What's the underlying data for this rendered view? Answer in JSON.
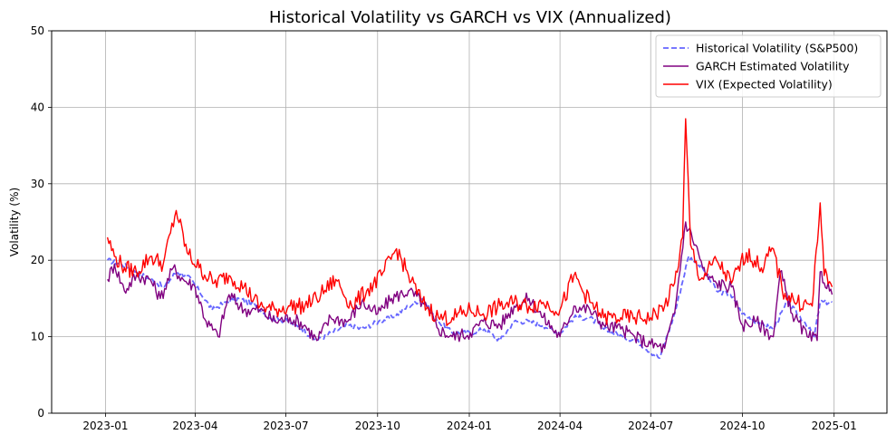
{
  "chart_data": {
    "type": "line",
    "title": "Historical Volatility vs GARCH vs VIX (Annualized)",
    "xlabel": "",
    "ylabel": "Volatility (%)",
    "ylim": [
      0,
      50
    ],
    "xlim": [
      "2022-11-08",
      "2025-02-23"
    ],
    "grid": true,
    "legend_position": "top-right",
    "x_ticks": [
      "2023-01",
      "2023-04",
      "2023-07",
      "2023-10",
      "2024-01",
      "2024-04",
      "2024-07",
      "2024-10",
      "2025-01"
    ],
    "y_ticks": [
      0,
      10,
      20,
      30,
      40,
      50
    ],
    "series": [
      {
        "name": "Historical Volatility (S&P500)",
        "color": "#6666ff",
        "style": "dashed",
        "points": [
          [
            "2023-01-03",
            20.0
          ],
          [
            "2023-01-17",
            19.5
          ],
          [
            "2023-02-01",
            18.5
          ],
          [
            "2023-02-15",
            17.5
          ],
          [
            "2023-03-01",
            16.5
          ],
          [
            "2023-03-13",
            18.5
          ],
          [
            "2023-03-24",
            18.0
          ],
          [
            "2023-04-05",
            16.0
          ],
          [
            "2023-04-18",
            13.5
          ],
          [
            "2023-05-01",
            14.5
          ],
          [
            "2023-05-15",
            15.0
          ],
          [
            "2023-06-01",
            14.0
          ],
          [
            "2023-06-15",
            12.5
          ],
          [
            "2023-07-03",
            12.0
          ],
          [
            "2023-07-17",
            11.0
          ],
          [
            "2023-08-01",
            9.5
          ],
          [
            "2023-08-15",
            10.5
          ],
          [
            "2023-09-01",
            11.5
          ],
          [
            "2023-09-15",
            11.0
          ],
          [
            "2023-10-02",
            12.0
          ],
          [
            "2023-10-16",
            12.5
          ],
          [
            "2023-11-01",
            14.0
          ],
          [
            "2023-11-15",
            15.0
          ],
          [
            "2023-12-01",
            12.0
          ],
          [
            "2023-12-15",
            10.5
          ],
          [
            "2024-01-02",
            10.5
          ],
          [
            "2024-01-16",
            11.0
          ],
          [
            "2024-02-01",
            9.5
          ],
          [
            "2024-02-15",
            12.0
          ],
          [
            "2024-03-01",
            12.0
          ],
          [
            "2024-03-15",
            11.5
          ],
          [
            "2024-04-01",
            10.5
          ],
          [
            "2024-04-15",
            12.5
          ],
          [
            "2024-05-01",
            12.5
          ],
          [
            "2024-05-15",
            11.0
          ],
          [
            "2024-06-03",
            10.0
          ],
          [
            "2024-06-17",
            9.5
          ],
          [
            "2024-07-01",
            8.0
          ],
          [
            "2024-07-10",
            7.2
          ],
          [
            "2024-07-25",
            13.0
          ],
          [
            "2024-08-08",
            20.5
          ],
          [
            "2024-08-22",
            19.0
          ],
          [
            "2024-09-05",
            16.0
          ],
          [
            "2024-09-19",
            15.5
          ],
          [
            "2024-10-01",
            13.0
          ],
          [
            "2024-10-15",
            12.0
          ],
          [
            "2024-11-01",
            11.0
          ],
          [
            "2024-11-15",
            14.5
          ],
          [
            "2024-12-02",
            12.0
          ],
          [
            "2024-12-12",
            10.0
          ],
          [
            "2024-12-18",
            14.5
          ],
          [
            "2024-12-30",
            14.5
          ]
        ]
      },
      {
        "name": "GARCH Estimated Volatility",
        "color": "#800080",
        "style": "solid",
        "points": [
          [
            "2023-01-03",
            17.5
          ],
          [
            "2023-01-10",
            19.5
          ],
          [
            "2023-01-20",
            16.0
          ],
          [
            "2023-02-01",
            18.0
          ],
          [
            "2023-02-15",
            17.5
          ],
          [
            "2023-02-25",
            15.0
          ],
          [
            "2023-03-10",
            19.0
          ],
          [
            "2023-03-20",
            17.5
          ],
          [
            "2023-04-01",
            16.5
          ],
          [
            "2023-04-12",
            12.0
          ],
          [
            "2023-04-24",
            10.0
          ],
          [
            "2023-05-05",
            15.5
          ],
          [
            "2023-05-20",
            13.5
          ],
          [
            "2023-06-05",
            13.5
          ],
          [
            "2023-06-20",
            12.0
          ],
          [
            "2023-07-05",
            12.5
          ],
          [
            "2023-07-20",
            11.5
          ],
          [
            "2023-08-01",
            9.5
          ],
          [
            "2023-08-15",
            12.5
          ],
          [
            "2023-09-01",
            12.0
          ],
          [
            "2023-09-15",
            14.5
          ],
          [
            "2023-10-01",
            13.0
          ],
          [
            "2023-10-15",
            15.0
          ],
          [
            "2023-11-01",
            16.0
          ],
          [
            "2023-11-15",
            14.5
          ],
          [
            "2023-12-01",
            11.0
          ],
          [
            "2023-12-15",
            10.0
          ],
          [
            "2024-01-02",
            10.5
          ],
          [
            "2024-01-15",
            12.0
          ],
          [
            "2024-02-01",
            11.5
          ],
          [
            "2024-02-15",
            14.0
          ],
          [
            "2024-03-01",
            15.0
          ],
          [
            "2024-03-15",
            12.5
          ],
          [
            "2024-04-01",
            10.0
          ],
          [
            "2024-04-15",
            14.0
          ],
          [
            "2024-05-01",
            13.5
          ],
          [
            "2024-05-15",
            11.5
          ],
          [
            "2024-06-01",
            11.0
          ],
          [
            "2024-06-15",
            10.0
          ],
          [
            "2024-07-01",
            9.0
          ],
          [
            "2024-07-15",
            8.5
          ],
          [
            "2024-07-25",
            13.0
          ],
          [
            "2024-08-05",
            25.0
          ],
          [
            "2024-08-15",
            22.0
          ],
          [
            "2024-08-25",
            18.0
          ],
          [
            "2024-09-05",
            17.0
          ],
          [
            "2024-09-20",
            16.5
          ],
          [
            "2024-10-01",
            11.5
          ],
          [
            "2024-10-15",
            12.0
          ],
          [
            "2024-11-01",
            10.0
          ],
          [
            "2024-11-08",
            18.5
          ],
          [
            "2024-11-20",
            13.0
          ],
          [
            "2024-12-05",
            10.0
          ],
          [
            "2024-12-15",
            9.5
          ],
          [
            "2024-12-18",
            18.5
          ],
          [
            "2024-12-30",
            15.5
          ]
        ]
      },
      {
        "name": "VIX (Expected Volatility)",
        "color": "#ff0000",
        "style": "solid",
        "points": [
          [
            "2023-01-03",
            23.0
          ],
          [
            "2023-01-10",
            20.5
          ],
          [
            "2023-01-20",
            19.0
          ],
          [
            "2023-02-01",
            18.5
          ],
          [
            "2023-02-15",
            20.5
          ],
          [
            "2023-02-28",
            19.5
          ],
          [
            "2023-03-13",
            26.5
          ],
          [
            "2023-03-24",
            21.0
          ],
          [
            "2023-04-05",
            19.0
          ],
          [
            "2023-04-20",
            17.0
          ],
          [
            "2023-05-05",
            18.0
          ],
          [
            "2023-05-20",
            16.5
          ],
          [
            "2023-06-05",
            14.0
          ],
          [
            "2023-06-20",
            13.5
          ],
          [
            "2023-07-05",
            14.0
          ],
          [
            "2023-07-20",
            14.0
          ],
          [
            "2023-08-05",
            15.5
          ],
          [
            "2023-08-20",
            17.5
          ],
          [
            "2023-09-05",
            14.0
          ],
          [
            "2023-09-20",
            16.0
          ],
          [
            "2023-10-05",
            18.0
          ],
          [
            "2023-10-20",
            21.5
          ],
          [
            "2023-11-01",
            18.0
          ],
          [
            "2023-11-15",
            14.5
          ],
          [
            "2023-12-01",
            12.5
          ],
          [
            "2023-12-15",
            12.5
          ],
          [
            "2024-01-02",
            13.5
          ],
          [
            "2024-01-15",
            13.0
          ],
          [
            "2024-02-01",
            14.0
          ],
          [
            "2024-02-15",
            14.5
          ],
          [
            "2024-03-01",
            14.0
          ],
          [
            "2024-03-15",
            14.5
          ],
          [
            "2024-04-01",
            13.5
          ],
          [
            "2024-04-15",
            18.0
          ],
          [
            "2024-05-01",
            14.5
          ],
          [
            "2024-05-15",
            12.5
          ],
          [
            "2024-06-01",
            12.5
          ],
          [
            "2024-06-15",
            12.5
          ],
          [
            "2024-07-01",
            12.5
          ],
          [
            "2024-07-15",
            14.0
          ],
          [
            "2024-07-25",
            17.0
          ],
          [
            "2024-08-02",
            23.0
          ],
          [
            "2024-08-05",
            38.5
          ],
          [
            "2024-08-10",
            22.0
          ],
          [
            "2024-08-20",
            17.5
          ],
          [
            "2024-09-05",
            20.0
          ],
          [
            "2024-09-20",
            17.0
          ],
          [
            "2024-10-05",
            21.0
          ],
          [
            "2024-10-20",
            19.0
          ],
          [
            "2024-11-01",
            21.5
          ],
          [
            "2024-11-10",
            16.0
          ],
          [
            "2024-11-25",
            14.5
          ],
          [
            "2024-12-10",
            14.0
          ],
          [
            "2024-12-18",
            27.5
          ],
          [
            "2024-12-22",
            18.0
          ],
          [
            "2024-12-30",
            16.5
          ]
        ]
      }
    ]
  }
}
